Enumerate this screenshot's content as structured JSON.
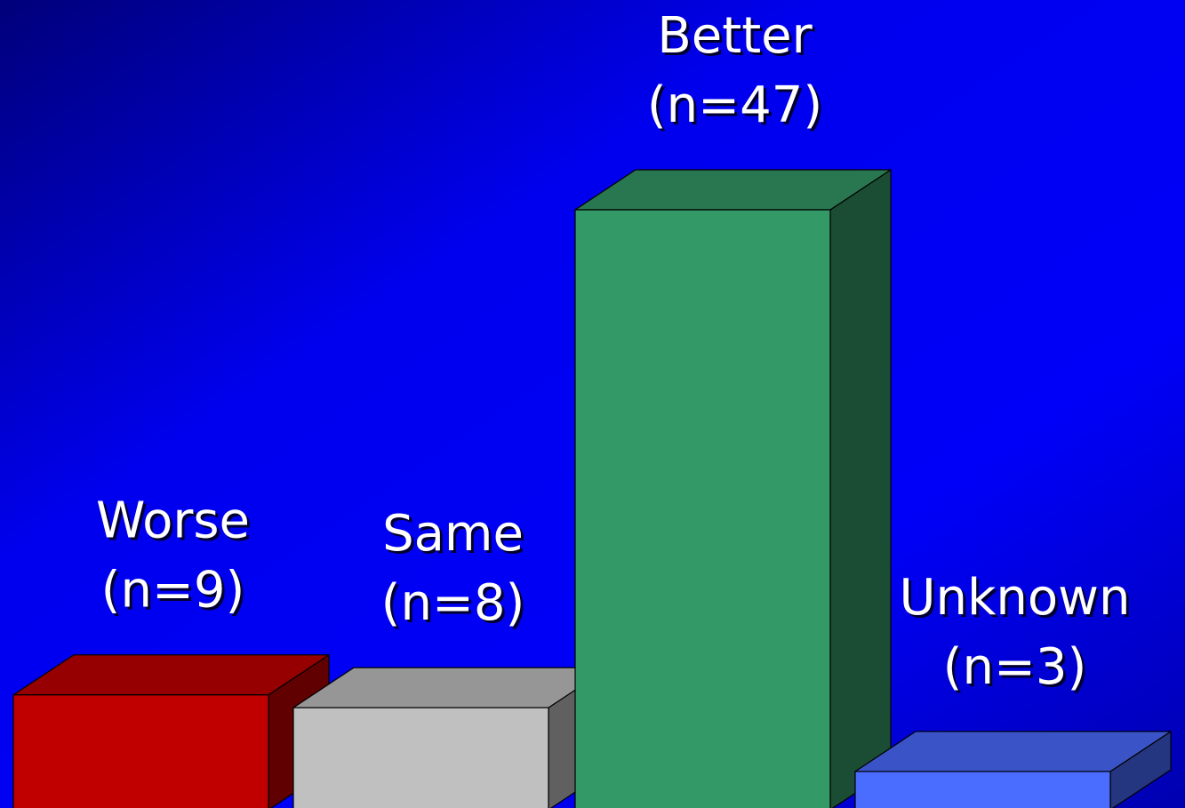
{
  "chart_data": {
    "type": "bar3d",
    "categories": [
      "Worse",
      "Same",
      "Better",
      "Unknown"
    ],
    "values": [
      9,
      8,
      47,
      3
    ],
    "value_labels": [
      "(n=9)",
      "(n=8)",
      "(n=47)",
      "(n=3)"
    ],
    "colors": [
      "#c00000",
      "#c0c0c0",
      "#339966",
      "#4a6cff"
    ]
  }
}
